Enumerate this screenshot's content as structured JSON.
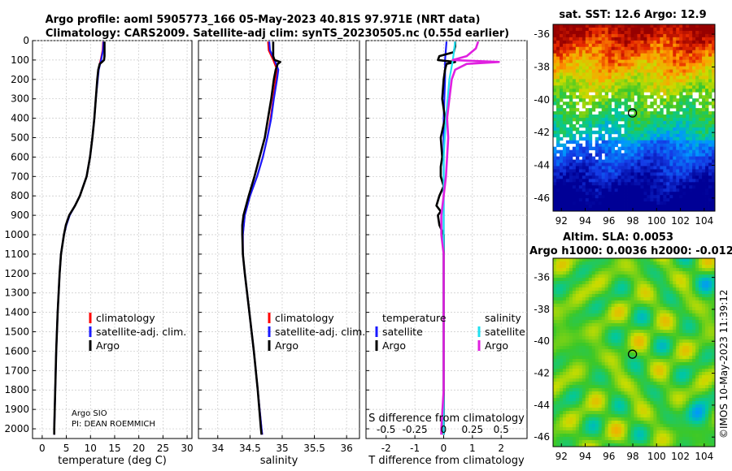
{
  "figure": {
    "title_line1": "Argo profile: aoml 5905773_166 05-May-2023 40.81S 97.971E (NRT data)",
    "title_line2": "Climatology: CARS2009. Satellite-adj clim: synTS_20230505.nc (0.55d earlier)",
    "credit_line1": "Argo SIO",
    "credit_line2": "PI: DEAN ROEMMICH",
    "watermark": "©IMOS 10-May-2023 11:39:12"
  },
  "colors": {
    "climatology": "#ff0000",
    "satellite_adj": "#1a1aff",
    "argo": "#000000",
    "argo_salinity_diff": "#e020e0",
    "satellite_salinity_diff": "#20e0f0",
    "grid": "#c8c8c8"
  },
  "chart_data": [
    {
      "type": "line",
      "id": "temperature",
      "xlabel": "temperature (deg C)",
      "ylabel": "",
      "xlim": [
        -2,
        31
      ],
      "ylim": [
        2050,
        0
      ],
      "xticks": [
        0,
        5,
        10,
        15,
        20,
        25,
        30
      ],
      "xticklabels": [
        "0",
        "5",
        "10",
        "15",
        "20",
        "25",
        "30"
      ],
      "yticks": [
        0,
        100,
        200,
        300,
        400,
        500,
        600,
        700,
        800,
        900,
        1000,
        1100,
        1200,
        1300,
        1400,
        1500,
        1600,
        1700,
        1800,
        1900,
        2000
      ],
      "yticklabels": [
        "0",
        "100",
        "200",
        "300",
        "400",
        "500",
        "600",
        "700",
        "800",
        "900",
        "1000",
        "1100",
        "1200",
        "1300",
        "1400",
        "1500",
        "1600",
        "1700",
        "1800",
        "1900",
        "2000"
      ],
      "legend": [
        "climatology",
        "satellite-adj. clim.",
        "Argo"
      ],
      "legend_position": "lower-right",
      "series": [
        {
          "name": "climatology",
          "depth": [
            5,
            50,
            100,
            150,
            200,
            300,
            400,
            500,
            600,
            700,
            800,
            850,
            900,
            950,
            1000,
            1100,
            1200,
            1400,
            1600,
            1800,
            2000,
            2030
          ],
          "values": [
            12.6,
            12.5,
            12.1,
            11.6,
            11.4,
            11.1,
            10.8,
            10.4,
            9.9,
            9.2,
            7.8,
            6.8,
            5.6,
            4.9,
            4.5,
            3.9,
            3.6,
            3.2,
            2.9,
            2.7,
            2.5,
            2.5
          ]
        },
        {
          "name": "satellite-adj. clim.",
          "depth": [
            5,
            50,
            100,
            150,
            200,
            300,
            400,
            500,
            600,
            700,
            800,
            850,
            900,
            950,
            1000,
            1100,
            1200,
            1400,
            1600,
            1800,
            2000,
            2030
          ],
          "values": [
            12.7,
            12.6,
            12.2,
            11.7,
            11.5,
            11.1,
            10.8,
            10.4,
            9.9,
            9.2,
            7.8,
            6.8,
            5.7,
            5.0,
            4.5,
            3.9,
            3.6,
            3.2,
            2.9,
            2.7,
            2.5,
            2.5
          ]
        },
        {
          "name": "Argo",
          "depth": [
            5,
            20,
            40,
            60,
            80,
            100,
            110,
            120,
            150,
            200,
            300,
            400,
            500,
            600,
            700,
            800,
            850,
            900,
            950,
            1000,
            1100,
            1200,
            1400,
            1600,
            1800,
            2000,
            2030
          ],
          "values": [
            12.9,
            12.9,
            12.9,
            12.9,
            12.9,
            12.8,
            12.4,
            11.9,
            11.6,
            11.4,
            11.1,
            10.8,
            10.4,
            9.9,
            9.2,
            7.8,
            6.8,
            5.6,
            4.9,
            4.5,
            3.9,
            3.6,
            3.2,
            2.9,
            2.7,
            2.5,
            2.5
          ]
        }
      ]
    },
    {
      "type": "line",
      "id": "salinity",
      "xlabel": "salinity",
      "xlim": [
        33.7,
        36.2
      ],
      "ylim": [
        2050,
        0
      ],
      "xticks": [
        34,
        34.5,
        35,
        35.5,
        36
      ],
      "xticklabels": [
        "34",
        "34.5",
        "35",
        "35.5",
        "36"
      ],
      "legend": [
        "climatology",
        "satellite-adj. clim.",
        "Argo"
      ],
      "legend_position": "lower-right",
      "series": [
        {
          "name": "climatology",
          "depth": [
            5,
            50,
            100,
            150,
            200,
            300,
            400,
            500,
            600,
            700,
            800,
            900,
            1000,
            1100,
            1200,
            1400,
            1600,
            1800,
            2000,
            2030
          ],
          "values": [
            34.78,
            34.79,
            34.86,
            34.92,
            34.9,
            34.86,
            34.82,
            34.77,
            34.7,
            34.61,
            34.5,
            34.42,
            34.39,
            34.39,
            34.42,
            34.49,
            34.56,
            34.62,
            34.68,
            34.69
          ]
        },
        {
          "name": "satellite-adj. clim.",
          "depth": [
            5,
            50,
            100,
            150,
            200,
            300,
            400,
            500,
            600,
            700,
            800,
            900,
            1000,
            1100,
            1200,
            1400,
            1600,
            1800,
            2000,
            2030
          ],
          "values": [
            34.8,
            34.81,
            34.88,
            34.94,
            34.92,
            34.87,
            34.83,
            34.77,
            34.7,
            34.61,
            34.5,
            34.42,
            34.39,
            34.39,
            34.42,
            34.49,
            34.56,
            34.62,
            34.68,
            34.69
          ]
        },
        {
          "name": "Argo",
          "depth": [
            5,
            40,
            80,
            100,
            110,
            120,
            150,
            200,
            300,
            400,
            500,
            600,
            700,
            800,
            850,
            900,
            950,
            1000,
            1100,
            1200,
            1400,
            1600,
            1800,
            2000,
            2030
          ],
          "values": [
            34.86,
            34.86,
            34.86,
            34.88,
            34.97,
            34.93,
            34.9,
            34.87,
            34.83,
            34.78,
            34.73,
            34.65,
            34.57,
            34.48,
            34.44,
            34.4,
            34.38,
            34.38,
            34.39,
            34.42,
            34.49,
            34.56,
            34.62,
            34.67,
            34.68
          ]
        }
      ]
    },
    {
      "type": "line",
      "id": "differences",
      "xlabel": "T difference from climatology",
      "top_axis_label": "S difference from climatology",
      "xlim": [
        -2.7,
        2.9
      ],
      "ylim": [
        2050,
        0
      ],
      "xticks": [
        -2,
        -1,
        0,
        1,
        2
      ],
      "xticklabels": [
        "-2",
        "-1",
        "0",
        "1",
        "2"
      ],
      "s_ticklabels": [
        "-0.5",
        "-0.25",
        "0",
        "0.25",
        "0.5"
      ],
      "legend_left_title": "temperature",
      "legend_right_title": "salinity",
      "legend_left": [
        "satellite",
        "Argo"
      ],
      "legend_right": [
        "satellite",
        "Argo"
      ],
      "series": [
        {
          "name": "temperature satellite",
          "depth": [
            5,
            100,
            200,
            400,
            800,
            1200,
            2030
          ],
          "values": [
            0.1,
            0.05,
            0.05,
            0.0,
            0.0,
            0.0,
            0.0
          ]
        },
        {
          "name": "temperature Argo",
          "depth": [
            5,
            30,
            60,
            80,
            100,
            110,
            120,
            150,
            200,
            300,
            400,
            500,
            600,
            650,
            700,
            750,
            800,
            850,
            880,
            900,
            950,
            1000,
            1050,
            1100,
            1200,
            1400,
            1600,
            1800,
            2030
          ],
          "values": [
            0.4,
            0.4,
            0.35,
            -0.15,
            -0.2,
            0.4,
            0.1,
            0.05,
            0.0,
            -0.05,
            0.05,
            -0.1,
            -0.05,
            -0.1,
            -0.1,
            0.0,
            -0.15,
            -0.25,
            -0.1,
            -0.2,
            -0.15,
            0.0,
            0.0,
            0.0,
            0.0,
            0.0,
            0.0,
            0.0,
            0.0
          ]
        },
        {
          "name": "salinity satellite",
          "depth": [
            5,
            100,
            200,
            400,
            600,
            800,
            1200,
            2030
          ],
          "values": [
            0.1,
            0.08,
            0.05,
            0.02,
            0.0,
            0.0,
            0.0,
            0.0
          ]
        },
        {
          "name": "salinity Argo",
          "depth": [
            5,
            40,
            80,
            100,
            110,
            120,
            150,
            200,
            300,
            400,
            500,
            600,
            700,
            800,
            900,
            1000,
            1100,
            1200,
            1400,
            1600,
            1800,
            2000,
            2030
          ],
          "values": [
            0.3,
            0.28,
            0.2,
            0.08,
            0.48,
            0.2,
            0.1,
            0.07,
            0.05,
            0.03,
            0.04,
            0.03,
            0.02,
            0.0,
            -0.02,
            -0.02,
            0.0,
            0.0,
            0.0,
            0.0,
            0.0,
            -0.02,
            -0.02
          ]
        }
      ]
    },
    {
      "type": "heatmap",
      "id": "sst_map",
      "title": "sat. SST: 12.6 Argo: 12.9",
      "xlim": [
        91.3,
        104.9
      ],
      "ylim": [
        -46.8,
        -35.4
      ],
      "xticks": [
        92,
        94,
        96,
        98,
        100,
        102,
        104
      ],
      "xticklabels": [
        "92",
        "94",
        "96",
        "98",
        "100",
        "102",
        "104"
      ],
      "yticks": [
        -36,
        -38,
        -40,
        -42,
        -44,
        -46
      ],
      "yticklabels": [
        "-36",
        "-38",
        "-40",
        "-42",
        "-44",
        "-46"
      ],
      "profile_marker": {
        "lon": 97.971,
        "lat": -40.81
      }
    },
    {
      "type": "heatmap",
      "id": "sla_map",
      "title_line1": "Altim. SLA: 0.0053",
      "title_line2": "Argo h1000: 0.0036 h2000: -0.012",
      "xlim": [
        91.3,
        104.9
      ],
      "ylim": [
        -46.6,
        -34.8
      ],
      "xticks": [
        92,
        94,
        96,
        98,
        100,
        102,
        104
      ],
      "xticklabels": [
        "92",
        "94",
        "96",
        "98",
        "100",
        "102",
        "104"
      ],
      "yticks": [
        -36,
        -38,
        -40,
        -42,
        -44,
        -46
      ],
      "yticklabels": [
        "-36",
        "-38",
        "-40",
        "-42",
        "-44",
        "-46"
      ],
      "profile_marker": {
        "lon": 97.971,
        "lat": -40.81
      }
    }
  ]
}
